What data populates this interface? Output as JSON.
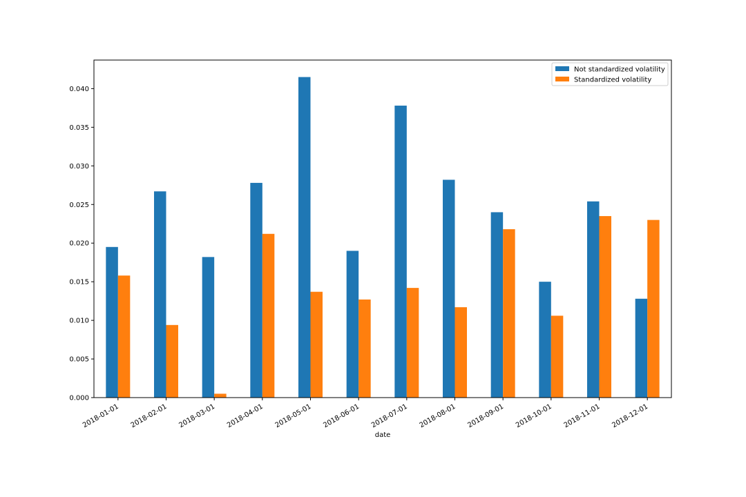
{
  "chart_data": {
    "type": "bar",
    "title": "",
    "xlabel": "date",
    "ylabel": "",
    "ylim": [
      0,
      0.0437
    ],
    "yticks": [
      "0.000",
      "0.005",
      "0.010",
      "0.015",
      "0.020",
      "0.025",
      "0.030",
      "0.035",
      "0.040"
    ],
    "grid": false,
    "legend_position": "top-right",
    "categories": [
      "2018-01-01",
      "2018-02-01",
      "2018-03-01",
      "2018-04-01",
      "2018-05-01",
      "2018-06-01",
      "2018-07-01",
      "2018-08-01",
      "2018-09-01",
      "2018-10-01",
      "2018-11-01",
      "2018-12-01"
    ],
    "series": [
      {
        "name": "Not standardized volatility",
        "color": "#1f77b4",
        "values": [
          0.0195,
          0.0267,
          0.0182,
          0.0278,
          0.0415,
          0.019,
          0.0378,
          0.0282,
          0.024,
          0.015,
          0.0254,
          0.0128
        ]
      },
      {
        "name": "Standardized volatility",
        "color": "#ff7f0e",
        "values": [
          0.0158,
          0.0094,
          0.0005,
          0.0212,
          0.0137,
          0.0127,
          0.0142,
          0.0117,
          0.0218,
          0.0106,
          0.0235,
          0.023
        ]
      }
    ]
  }
}
